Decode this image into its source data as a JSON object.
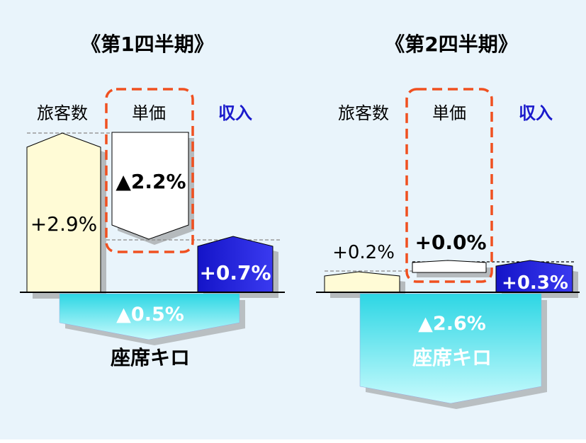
{
  "colors": {
    "background": "#e9f4fb",
    "passenger_fill": "#fffbd6",
    "price_fill": "#ffffff",
    "revenue_fill": "#1f1fd6",
    "seat_km_fill": "#46e4ef",
    "highlight_box": "#f05020",
    "revenue_label": "#1a1acc",
    "baseline": "#000000"
  },
  "panels": [
    {
      "title": "《第1四半期》",
      "headers": {
        "passengers": "旅客数",
        "unit_price": "単価",
        "revenue": "収入"
      },
      "passengers_value": "+2.9%",
      "unit_price_value": "▲2.2%",
      "revenue_value": "+0.7%",
      "seat_km_value": "▲0.5%",
      "seat_km_label": "座席キロ"
    },
    {
      "title": "《第2四半期》",
      "headers": {
        "passengers": "旅客数",
        "unit_price": "単価",
        "revenue": "収入"
      },
      "passengers_value": "+0.2%",
      "unit_price_value": "+0.0%",
      "revenue_value": "+0.3%",
      "seat_km_value": "▲2.6%",
      "seat_km_label": "座席キロ"
    }
  ]
}
